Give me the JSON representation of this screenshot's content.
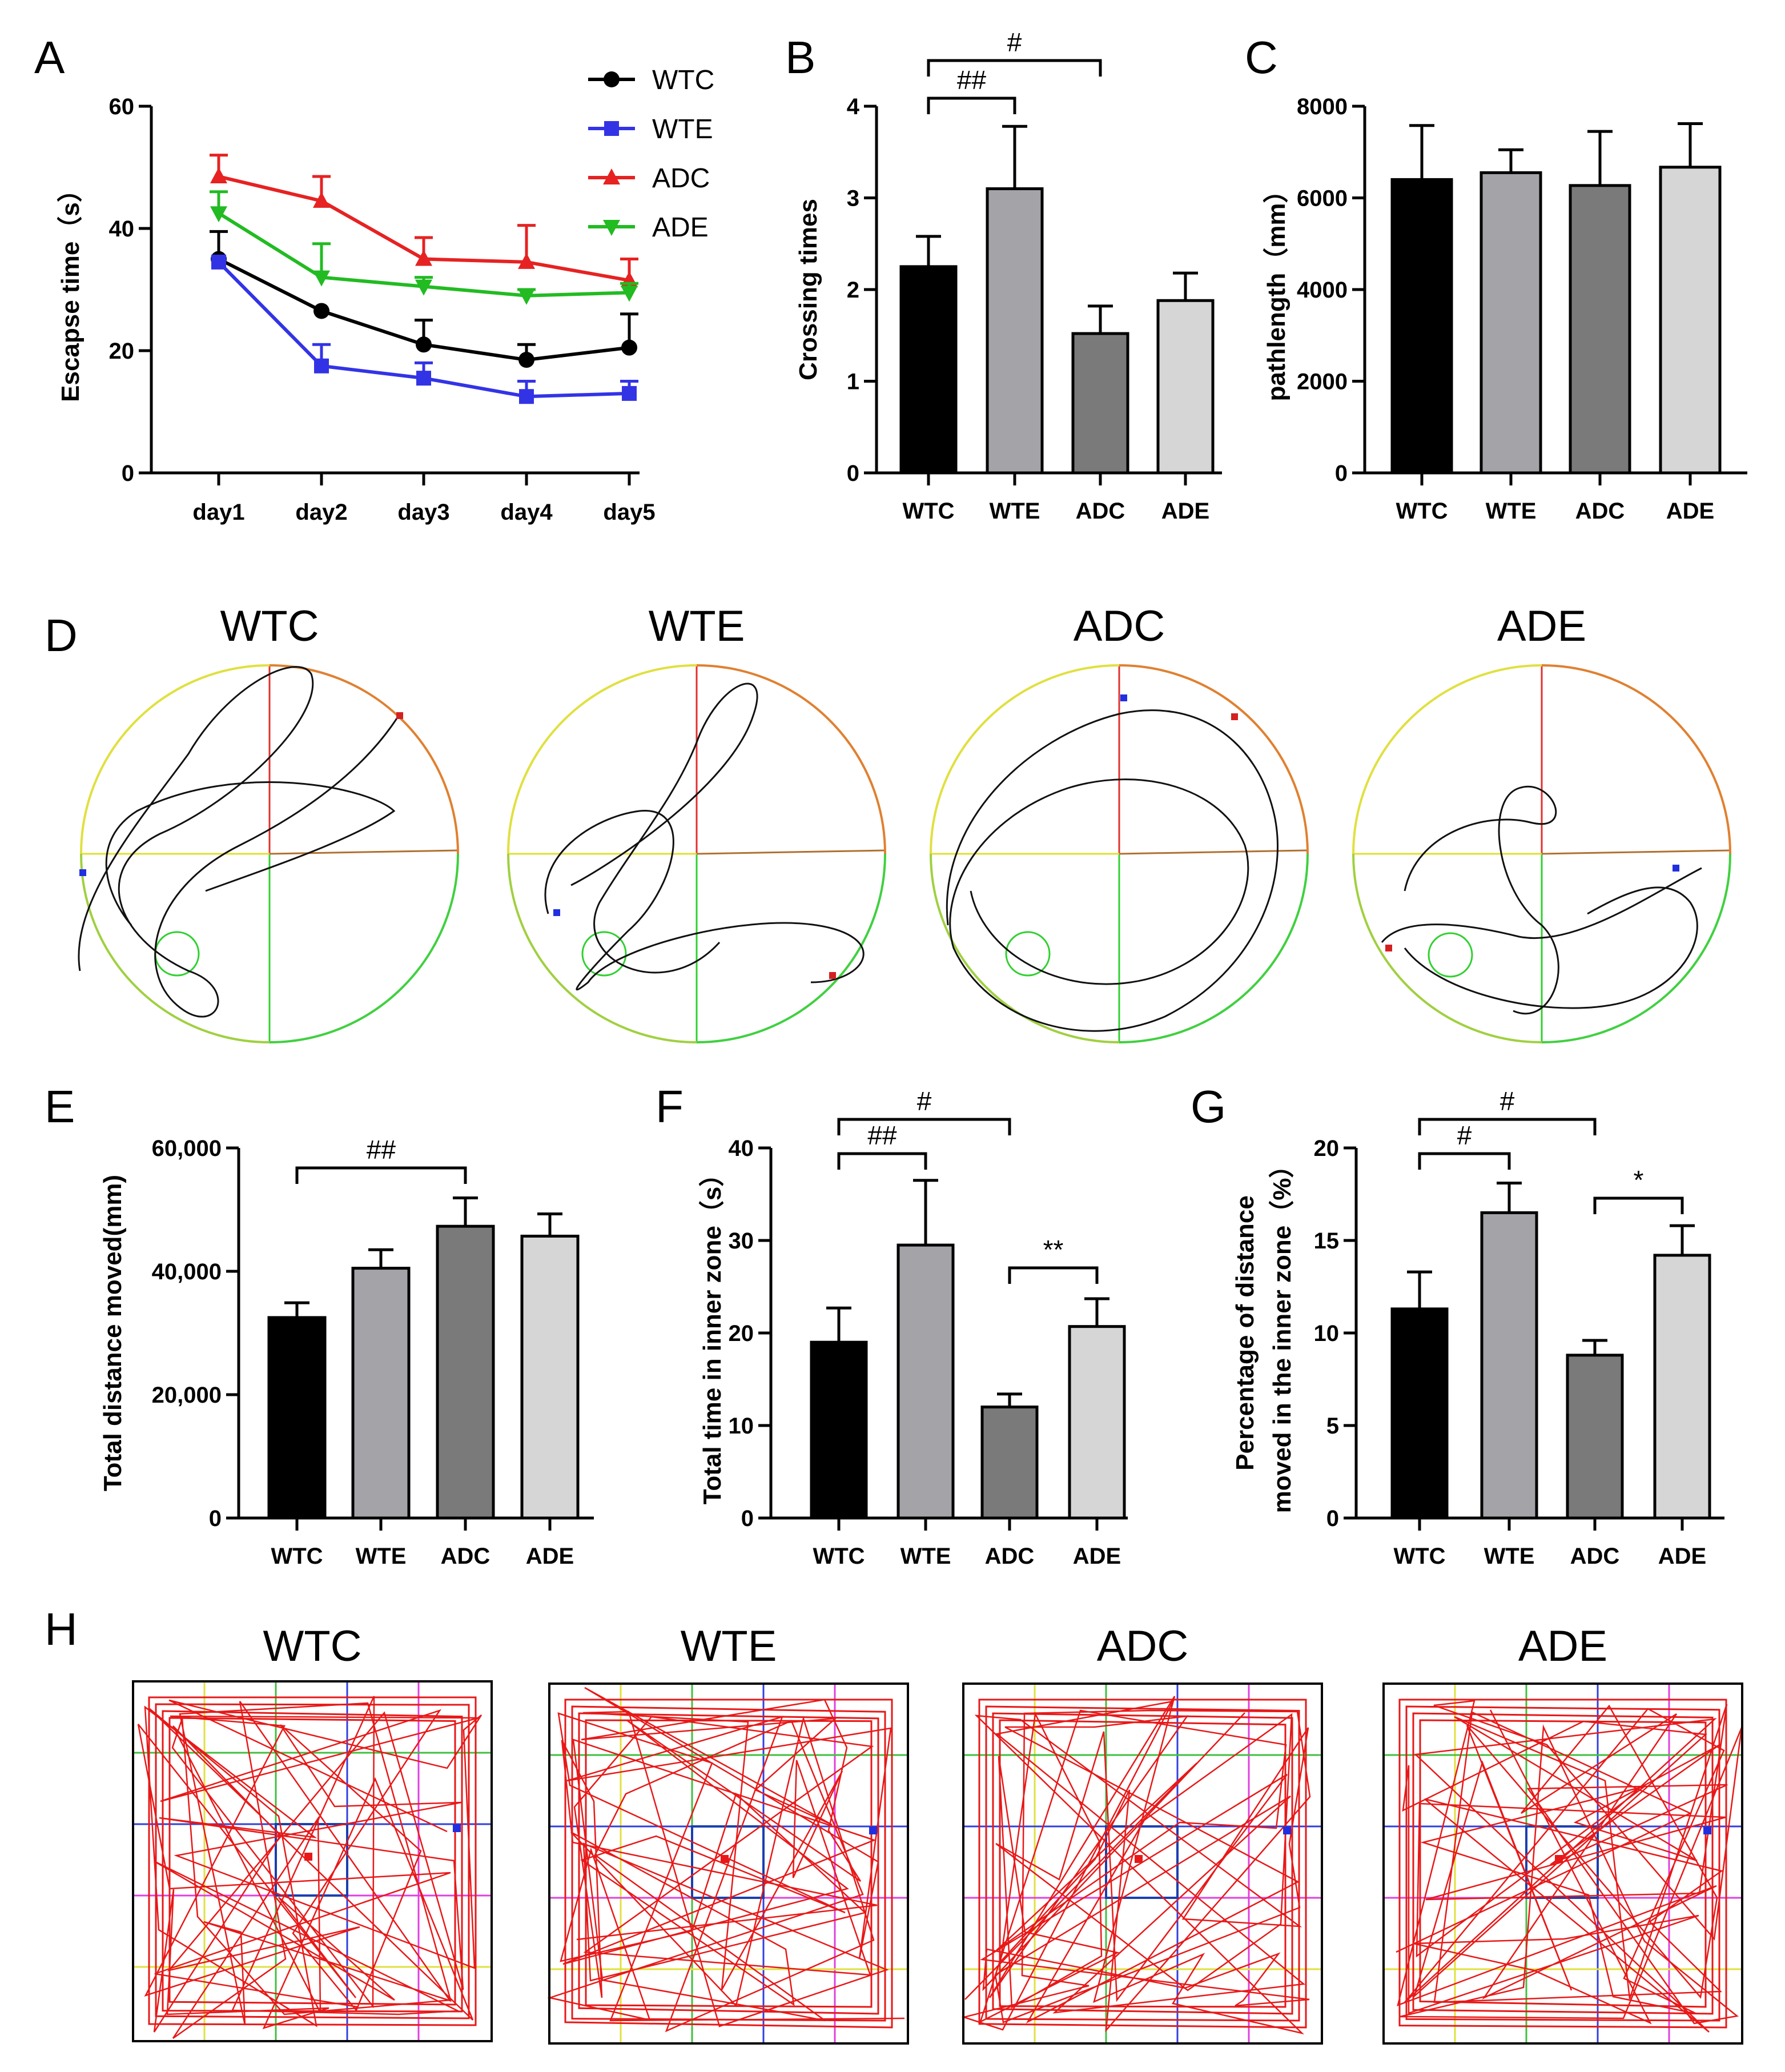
{
  "chart_data": [
    {
      "panel": "A",
      "type": "line",
      "x": [
        "day1",
        "day2",
        "day3",
        "day4",
        "day5"
      ],
      "ylabel": "Escapse time（s）",
      "xlabel": "",
      "ylim": [
        0,
        60
      ],
      "yticks": [
        0,
        20,
        40,
        60
      ],
      "legend_position": "top-right",
      "series": [
        {
          "name": "WTC",
          "color": "#000000",
          "marker": "circle",
          "values": [
            35,
            26.5,
            21,
            18.5,
            20.5
          ],
          "err": [
            4.5,
            0,
            4,
            2.5,
            5.5
          ]
        },
        {
          "name": "WTE",
          "color": "#3333e6",
          "marker": "square",
          "values": [
            34.5,
            17.5,
            15.5,
            12.5,
            13
          ],
          "err": [
            0,
            3.5,
            2.5,
            2.5,
            2
          ]
        },
        {
          "name": "ADC",
          "color": "#e62222",
          "marker": "triangle-up",
          "values": [
            48.5,
            44.5,
            35,
            34.5,
            31.5
          ],
          "err": [
            3.5,
            4,
            3.5,
            6,
            3.5
          ]
        },
        {
          "name": "ADE",
          "color": "#22bb22",
          "marker": "triangle-down",
          "values": [
            42.5,
            32,
            30.5,
            29,
            29.5
          ],
          "err": [
            3.5,
            5.5,
            1.5,
            1,
            1.5
          ]
        }
      ]
    },
    {
      "panel": "B",
      "type": "bar",
      "categories": [
        "WTC",
        "WTE",
        "ADC",
        "ADE"
      ],
      "values": [
        2.25,
        3.1,
        1.52,
        1.88
      ],
      "err": [
        0.33,
        0.68,
        0.3,
        0.3
      ],
      "ylabel": "Crossing times",
      "ylim": [
        0,
        4
      ],
      "yticks": [
        0,
        1,
        2,
        3,
        4
      ],
      "brackets": [
        {
          "from": 0,
          "to": 2,
          "label": "#",
          "level": 1
        },
        {
          "from": 0,
          "to": 1,
          "label": "##",
          "level": 0
        }
      ]
    },
    {
      "panel": "C",
      "type": "bar",
      "categories": [
        "WTC",
        "WTE",
        "ADC",
        "ADE"
      ],
      "values": [
        6400,
        6550,
        6270,
        6670
      ],
      "err": [
        1180,
        500,
        1180,
        950
      ],
      "ylabel": "pathlength（mm）",
      "ylim": [
        0,
        8000
      ],
      "yticks": [
        0,
        2000,
        4000,
        6000,
        8000
      ],
      "brackets": []
    },
    {
      "panel": "E",
      "type": "bar",
      "categories": [
        "WTC",
        "WTE",
        "ADC",
        "ADE"
      ],
      "values": [
        32500,
        40500,
        47300,
        45700
      ],
      "err": [
        2400,
        3000,
        4600,
        3600
      ],
      "ylabel": "Total distance moved(mm)",
      "ylim": [
        0,
        60000
      ],
      "yticks": [
        0,
        20000,
        40000,
        60000
      ],
      "ytick_labels": [
        "0",
        "20,000",
        "40,000",
        "60,000"
      ],
      "brackets": [
        {
          "from": 0,
          "to": 2,
          "label": "##",
          "level": 0
        }
      ]
    },
    {
      "panel": "F",
      "type": "bar",
      "categories": [
        "WTC",
        "WTE",
        "ADC",
        "ADE"
      ],
      "values": [
        19,
        29.5,
        12,
        20.7
      ],
      "err": [
        3.7,
        7,
        1.4,
        3
      ],
      "ylabel": "Total time in inner zone（s）",
      "ylim": [
        0,
        40
      ],
      "yticks": [
        0,
        10,
        20,
        30,
        40
      ],
      "brackets": [
        {
          "from": 0,
          "to": 2,
          "label": "#",
          "level": 1
        },
        {
          "from": 0,
          "to": 1,
          "label": "##",
          "level": 0
        },
        {
          "from": 2,
          "to": 3,
          "label": "**",
          "level": 0
        }
      ]
    },
    {
      "panel": "G",
      "type": "bar",
      "categories": [
        "WTC",
        "WTE",
        "ADC",
        "ADE"
      ],
      "values": [
        11.3,
        16.5,
        8.8,
        14.2
      ],
      "err": [
        2,
        1.6,
        0.8,
        1.6
      ],
      "ylabel_lines": [
        "Percentage of distance",
        "moved in the  inner zone（%）"
      ],
      "ylim": [
        0,
        20
      ],
      "yticks": [
        0,
        5,
        10,
        15,
        20
      ],
      "brackets": [
        {
          "from": 0,
          "to": 2,
          "label": "#",
          "level": 1
        },
        {
          "from": 0,
          "to": 1,
          "label": "#",
          "level": 0
        },
        {
          "from": 2,
          "to": 3,
          "label": "*",
          "level": 0
        }
      ]
    }
  ],
  "bar_colors": [
    "#000000",
    "#a3a3a8",
    "#7a7a7a",
    "#d6d6d6"
  ],
  "panel_labels": {
    "a": "A",
    "b": "B",
    "c": "C",
    "d": "D",
    "e": "E",
    "f": "F",
    "g": "G",
    "h": "H"
  },
  "track_groups": {
    "D": [
      "WTC",
      "WTE",
      "ADC",
      "ADE"
    ],
    "H": [
      "WTC",
      "WTE",
      "ADC",
      "ADE"
    ]
  }
}
